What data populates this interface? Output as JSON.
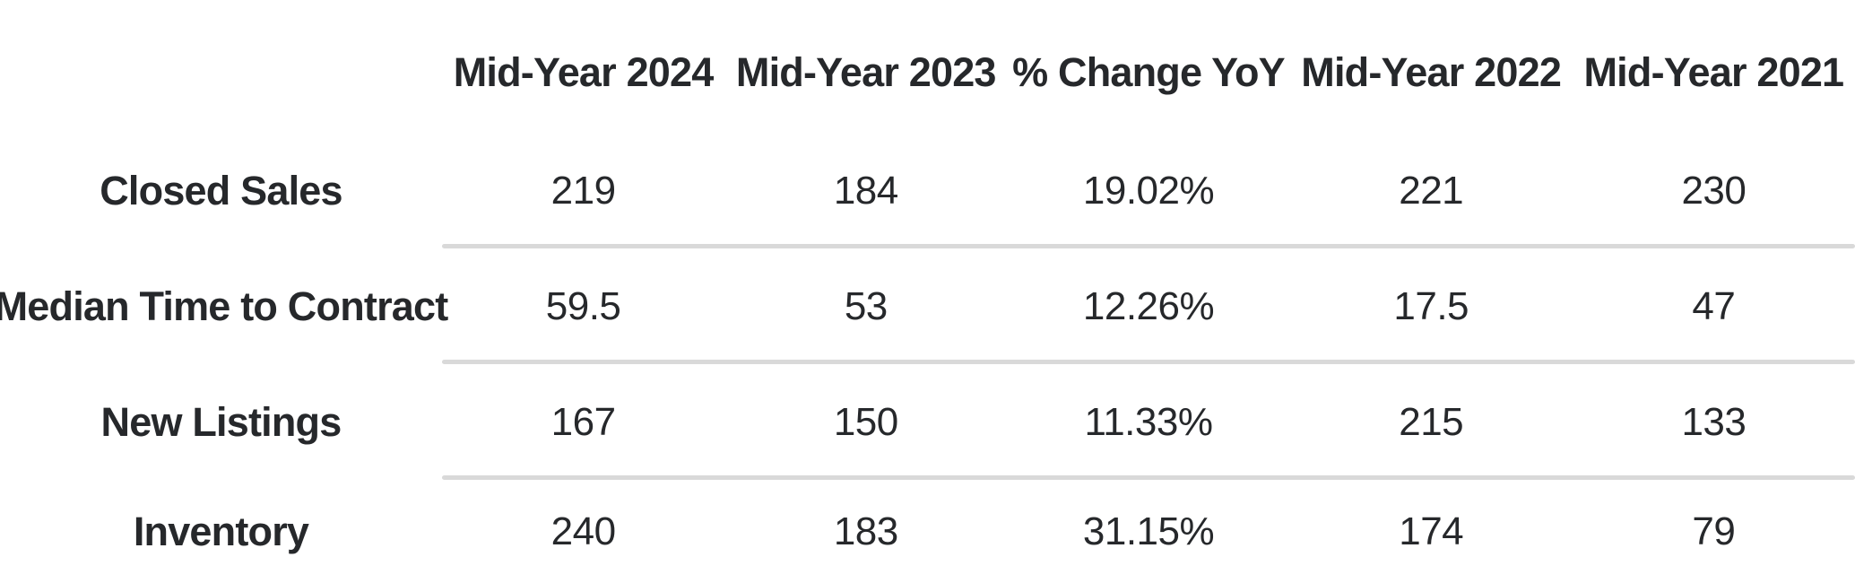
{
  "chart_data": {
    "type": "table",
    "title": "",
    "categories": [
      "Mid-Year 2024",
      "Mid-Year 2023",
      "% Change YoY",
      "Mid-Year 2022",
      "Mid-Year 2021"
    ],
    "series": [
      {
        "name": "Closed Sales",
        "values": [
          "219",
          "184",
          "19.02%",
          "221",
          "230"
        ]
      },
      {
        "name": "Median Time to Contract",
        "values": [
          "59.5",
          "53",
          "12.26%",
          "17.5",
          "47"
        ]
      },
      {
        "name": "New Listings",
        "values": [
          "167",
          "150",
          "11.33%",
          "215",
          "133"
        ]
      },
      {
        "name": "Inventory",
        "values": [
          "240",
          "183",
          "31.15%",
          "174",
          "79"
        ]
      }
    ],
    "layout": {
      "corner_cell": "",
      "grid": "horizontal dividers between data rows only, spanning value columns",
      "legend_position": "none"
    }
  },
  "colors": {
    "background": "#ffffff",
    "text": "#26282b",
    "divider": "#d9d9d9"
  }
}
